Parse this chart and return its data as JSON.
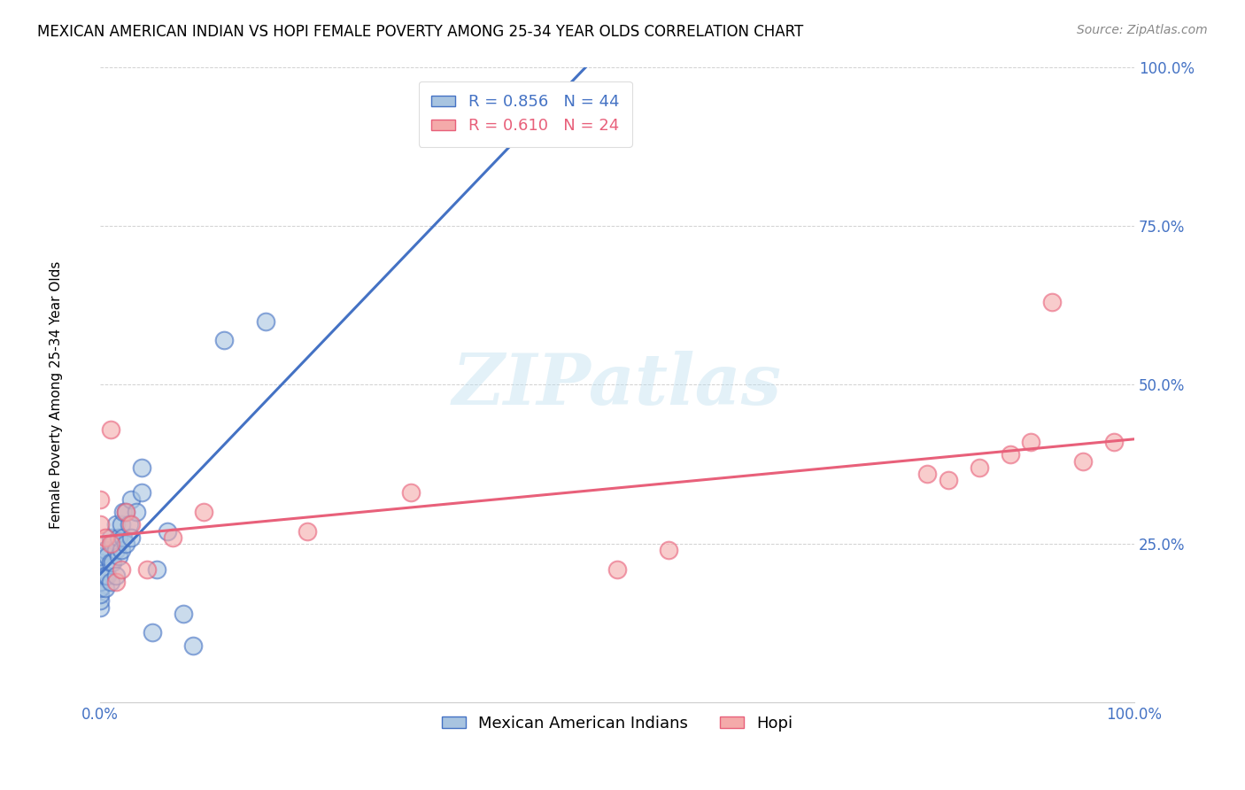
{
  "title": "MEXICAN AMERICAN INDIAN VS HOPI FEMALE POVERTY AMONG 25-34 YEAR OLDS CORRELATION CHART",
  "source": "Source: ZipAtlas.com",
  "ylabel": "Female Poverty Among 25-34 Year Olds",
  "xlim": [
    0,
    1.0
  ],
  "ylim": [
    0,
    1.0
  ],
  "blue_R": 0.856,
  "blue_N": 44,
  "pink_R": 0.61,
  "pink_N": 24,
  "blue_color": "#A8C4E0",
  "pink_color": "#F4AAAA",
  "blue_line_color": "#4472C4",
  "pink_line_color": "#E8607A",
  "watermark_text": "ZIPatlas",
  "legend_label_blue": "Mexican American Indians",
  "legend_label_pink": "Hopi",
  "blue_points_x": [
    0.0,
    0.0,
    0.0,
    0.0,
    0.0,
    0.0,
    0.0,
    0.0,
    0.0,
    0.0,
    0.005,
    0.005,
    0.005,
    0.007,
    0.007,
    0.01,
    0.01,
    0.01,
    0.012,
    0.012,
    0.015,
    0.015,
    0.015,
    0.018,
    0.018,
    0.02,
    0.02,
    0.022,
    0.022,
    0.025,
    0.025,
    0.028,
    0.03,
    0.03,
    0.035,
    0.04,
    0.04,
    0.05,
    0.055,
    0.065,
    0.08,
    0.09,
    0.12,
    0.16
  ],
  "blue_points_y": [
    0.15,
    0.16,
    0.17,
    0.18,
    0.19,
    0.2,
    0.21,
    0.22,
    0.22,
    0.23,
    0.18,
    0.2,
    0.24,
    0.2,
    0.23,
    0.19,
    0.22,
    0.26,
    0.22,
    0.25,
    0.2,
    0.24,
    0.28,
    0.23,
    0.26,
    0.24,
    0.28,
    0.26,
    0.3,
    0.25,
    0.3,
    0.28,
    0.26,
    0.32,
    0.3,
    0.33,
    0.37,
    0.11,
    0.21,
    0.27,
    0.14,
    0.09,
    0.57,
    0.6
  ],
  "pink_points_x": [
    0.0,
    0.0,
    0.005,
    0.01,
    0.01,
    0.015,
    0.02,
    0.025,
    0.03,
    0.045,
    0.07,
    0.1,
    0.2,
    0.3,
    0.5,
    0.55,
    0.8,
    0.82,
    0.85,
    0.88,
    0.9,
    0.92,
    0.95,
    0.98
  ],
  "pink_points_y": [
    0.28,
    0.32,
    0.26,
    0.25,
    0.43,
    0.19,
    0.21,
    0.3,
    0.28,
    0.21,
    0.26,
    0.3,
    0.27,
    0.33,
    0.21,
    0.24,
    0.36,
    0.35,
    0.37,
    0.39,
    0.41,
    0.63,
    0.38,
    0.41
  ]
}
